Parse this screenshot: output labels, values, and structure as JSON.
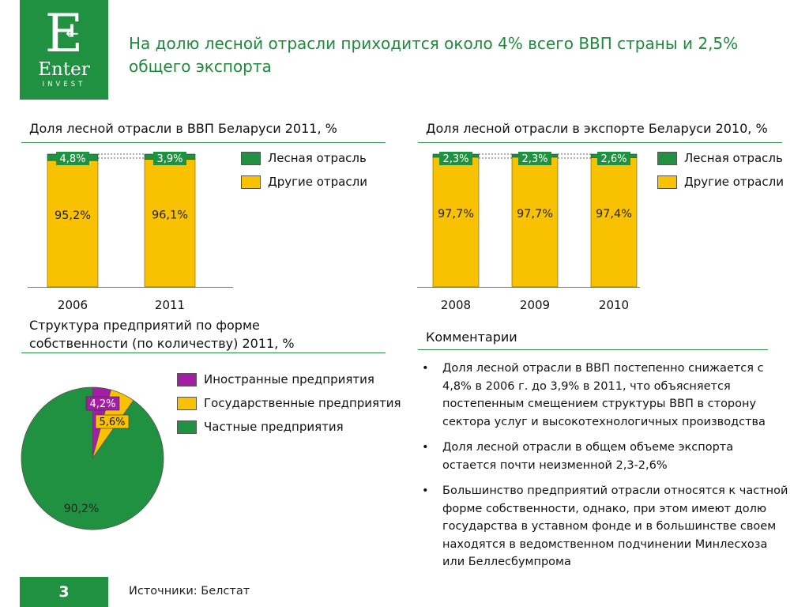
{
  "logo": {
    "letter": "E",
    "word": "Enter",
    "sub": "INVEST"
  },
  "title": "На долю лесной отрасли приходится около 4% всего ВВП страны и 2,5% общего экспорта",
  "gdp_chart_title": "Доля лесной отрасли в ВВП Беларуси 2011, %",
  "export_chart_title": "Доля лесной отрасли в экспорте Беларуси 2010, %",
  "ownership_title": "Структура предприятий по форме собственности (по количеству) 2011, %",
  "legend_forest": "Лесная отрасль",
  "legend_other": "Другие отрасли",
  "pie_legend": [
    "Иностранные предприятия",
    "Государственные предприятия",
    "Частные предприятия"
  ],
  "comments_title": "Комментарии",
  "comments": [
    "Доля лесной отрасли в ВВП постепенно снижается с 4,8% в 2006 г. до 3,9% в 2011, что объясняется постепенным смещением структуры ВВП в сторону сектора услуг и высокотехнологичных производства",
    "Доля лесной отрасли в общем объеме экспорта остается почти неизменной 2,3-2,6%",
    "Большинство предприятий отрасли относятся к частной форме собственности, однако, при этом имеют долю государства в уставном фонде и в большинстве своем находятся в ведомственном подчинении Минлесхоза или Беллесбумпрома"
  ],
  "page_number": "3",
  "source": "Источники: Белстат",
  "colors": {
    "green": "#1f9141",
    "yellow": "#f8c200",
    "purple": "#a21ea2",
    "title_green": "#1f8a3c"
  },
  "chart_data": [
    {
      "type": "bar",
      "stacked": true,
      "title": "Доля лесной отрасли в ВВП Беларуси 2011, %",
      "categories": [
        "2006",
        "2011"
      ],
      "series": [
        {
          "name": "Лесная отрасль",
          "values": [
            4.8,
            3.9
          ],
          "labels": [
            "4,8%",
            "3,9%"
          ]
        },
        {
          "name": "Другие отрасли",
          "values": [
            95.2,
            96.1
          ],
          "labels": [
            "95,2%",
            "96,1%"
          ]
        }
      ],
      "ylim": [
        0,
        100
      ],
      "legend": "right"
    },
    {
      "type": "bar",
      "stacked": true,
      "title": "Доля лесной отрасли в экспорте Беларуси 2010, %",
      "categories": [
        "2008",
        "2009",
        "2010"
      ],
      "series": [
        {
          "name": "Лесная отрасль",
          "values": [
            2.3,
            2.3,
            2.6
          ],
          "labels": [
            "2,3%",
            "2,3%",
            "2,6%"
          ]
        },
        {
          "name": "Другие отрасли",
          "values": [
            97.7,
            97.7,
            97.4
          ],
          "labels": [
            "97,7%",
            "97,7%",
            "97,4%"
          ]
        }
      ],
      "ylim": [
        0,
        100
      ],
      "legend": "right"
    },
    {
      "type": "pie",
      "title": "Структура предприятий по форме собственности (по количеству) 2011, %",
      "categories": [
        "Иностранные предприятия",
        "Государственные предприятия",
        "Частные предприятия"
      ],
      "values": [
        4.2,
        5.6,
        90.2
      ],
      "labels": [
        "4,2%",
        "5,6%",
        "90,2%"
      ],
      "legend": "right"
    }
  ]
}
